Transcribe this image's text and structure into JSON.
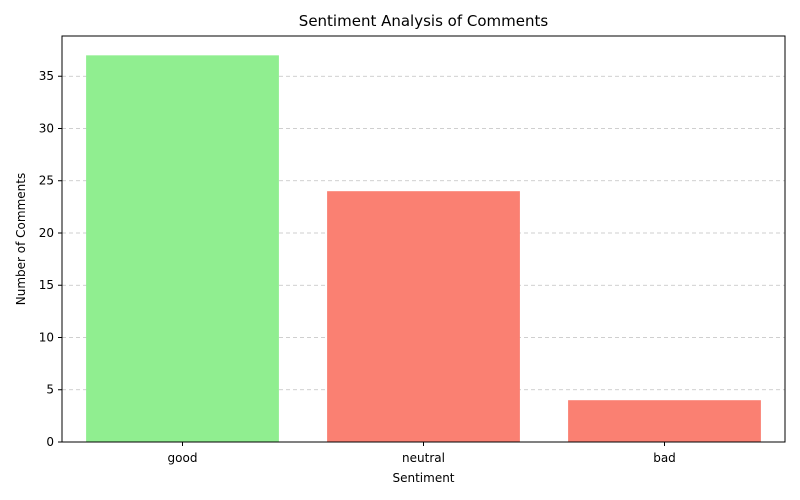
{
  "chart_data": {
    "type": "bar",
    "title": "Sentiment Analysis of Comments",
    "xlabel": "Sentiment",
    "ylabel": "Number of Comments",
    "categories": [
      "good",
      "neutral",
      "bad"
    ],
    "values": [
      37,
      24,
      4
    ],
    "bar_colors": [
      "#90ee90",
      "#fa8072",
      "#fa8072"
    ],
    "ylim": [
      0,
      38.85
    ],
    "yticks": [
      0,
      5,
      10,
      15,
      20,
      25,
      30,
      35
    ],
    "grid": {
      "axis": "y",
      "style": "dashed",
      "color": "#c0c0c0"
    }
  }
}
